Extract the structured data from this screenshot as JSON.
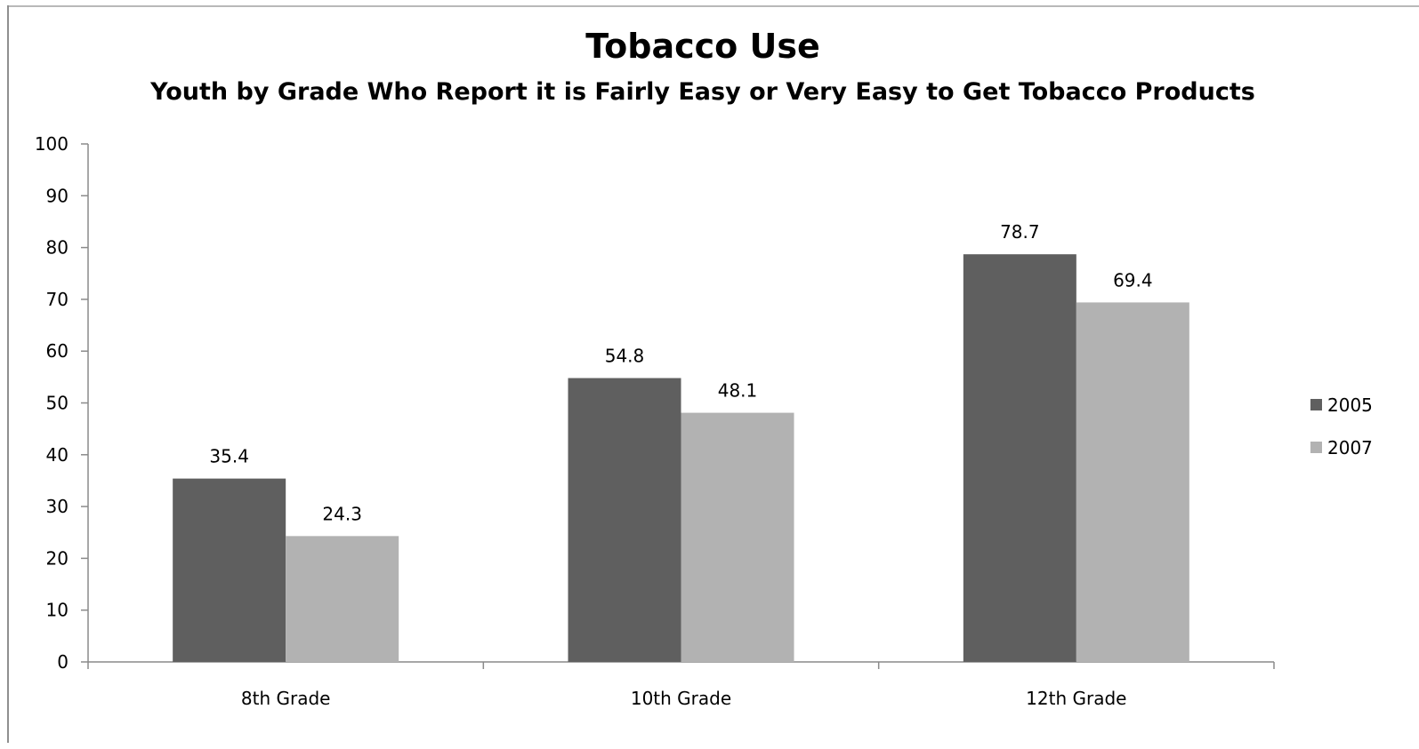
{
  "chart_data": {
    "type": "bar",
    "title": "Tobacco Use",
    "subtitle": "Youth by Grade Who Report it is Fairly Easy or Very Easy to Get Tobacco Products",
    "categories": [
      "8th Grade",
      "10th Grade",
      "12th Grade"
    ],
    "series": [
      {
        "name": "2005",
        "values": [
          35.4,
          54.8,
          78.7
        ],
        "color": "#5f5f5f"
      },
      {
        "name": "2007",
        "values": [
          24.3,
          48.1,
          69.4
        ],
        "color": "#b2b2b2"
      }
    ],
    "ylim": [
      0,
      100
    ],
    "yticks": [
      "0",
      "10",
      "20",
      "30",
      "40",
      "50",
      "60",
      "70",
      "80",
      "90",
      "100"
    ],
    "grid": false,
    "legend_position": "right"
  }
}
